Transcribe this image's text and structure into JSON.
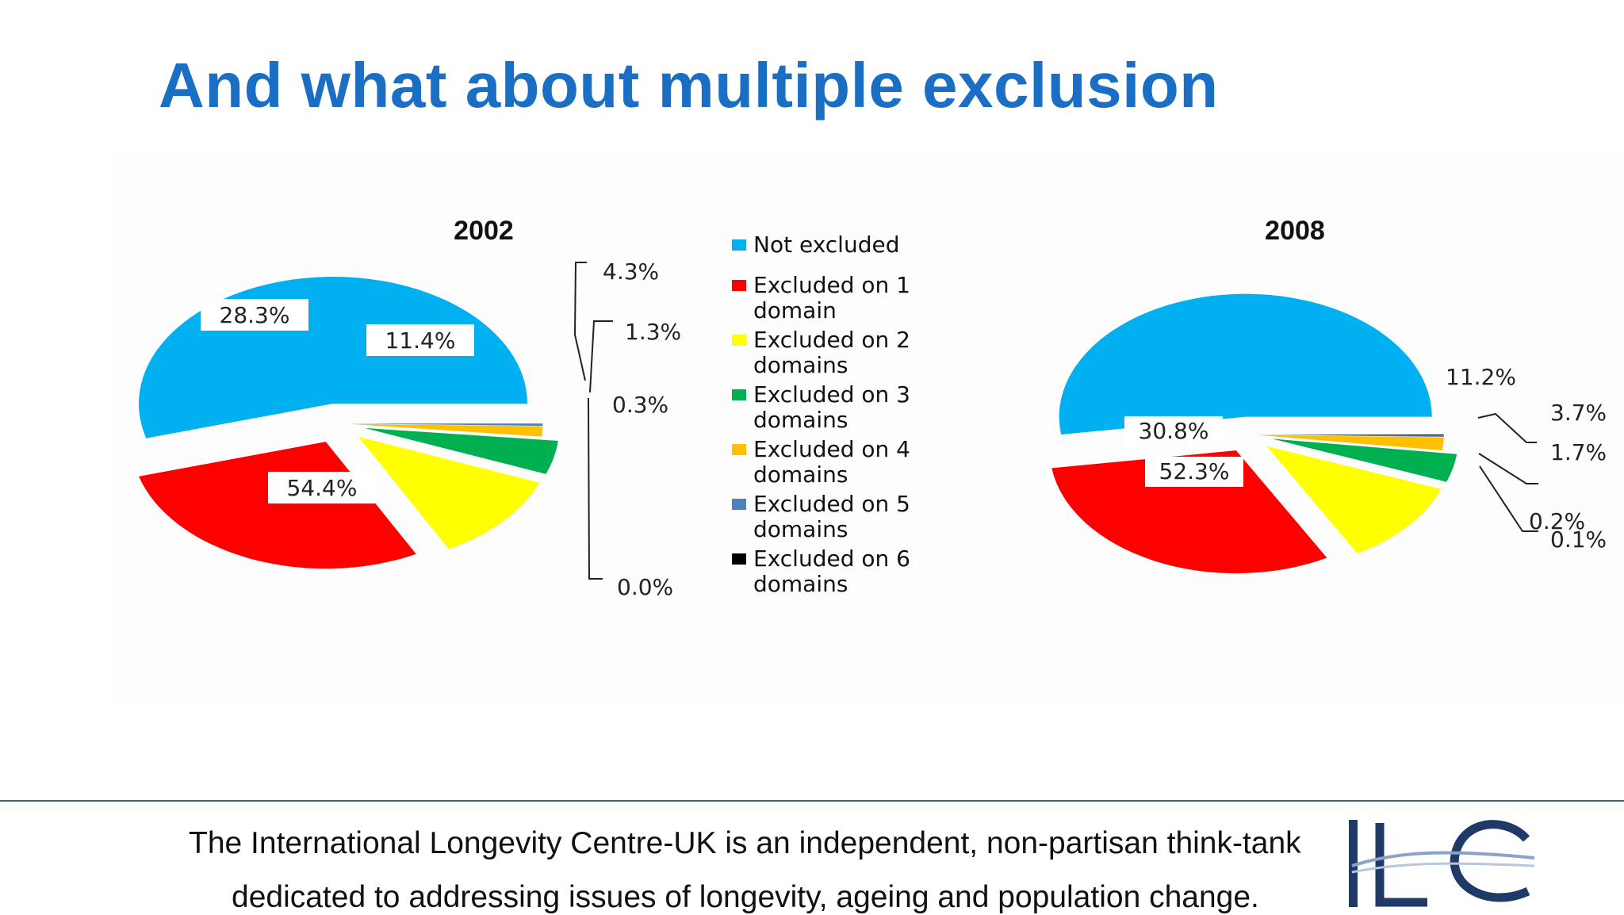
{
  "slide": {
    "title": "And what about multiple exclusion"
  },
  "legend": [
    {
      "lines": [
        "Not excluded"
      ],
      "color": "#00b0f0"
    },
    {
      "lines": [
        "Excluded on 1",
        "domain"
      ],
      "color": "#ff0000"
    },
    {
      "lines": [
        "Excluded on 2",
        "domains"
      ],
      "color": "#ffff00"
    },
    {
      "lines": [
        "Excluded on 3",
        "domains"
      ],
      "color": "#00b050"
    },
    {
      "lines": [
        "Excluded on 4",
        "domains"
      ],
      "color": "#ffc000"
    },
    {
      "lines": [
        "Excluded on 5",
        "domains"
      ],
      "color": "#4f81bd"
    },
    {
      "lines": [
        "Excluded on 6",
        "domains"
      ],
      "color": "#000000"
    }
  ],
  "chart_data": [
    {
      "type": "pie",
      "title": "2002",
      "categories": [
        "Not excluded",
        "Excluded on 1 domain",
        "Excluded on 2 domains",
        "Excluded on 3 domains",
        "Excluded on 4 domains",
        "Excluded on 5 domains",
        "Excluded on 6 domains"
      ],
      "values": [
        54.4,
        28.3,
        11.4,
        4.3,
        1.3,
        0.3,
        0.0
      ],
      "labels": [
        "54.4%",
        "28.3%",
        "11.4%",
        "4.3%",
        "1.3%",
        "0.3%",
        "0.0%"
      ],
      "legend_position": "right"
    },
    {
      "type": "pie",
      "title": "2008",
      "categories": [
        "Not excluded",
        "Excluded on 1 domain",
        "Excluded on 2 domains",
        "Excluded on 3 domains",
        "Excluded on 4 domains",
        "Excluded on 5 domains",
        "Excluded on 6 domains"
      ],
      "values": [
        52.3,
        30.8,
        11.2,
        3.7,
        1.7,
        0.2,
        0.1
      ],
      "labels": [
        "52.3%",
        "30.8%",
        "11.2%",
        "3.7%",
        "1.7%",
        "0.2%",
        "0.1%"
      ],
      "legend_position": "left"
    }
  ],
  "footer": {
    "line1": "The International Longevity Centre-UK is an independent, non-partisan think-tank",
    "line2": "dedicated to addressing issues of longevity, ageing and population change."
  },
  "logo": {
    "text": "ILC",
    "color": "#1f3a66"
  }
}
